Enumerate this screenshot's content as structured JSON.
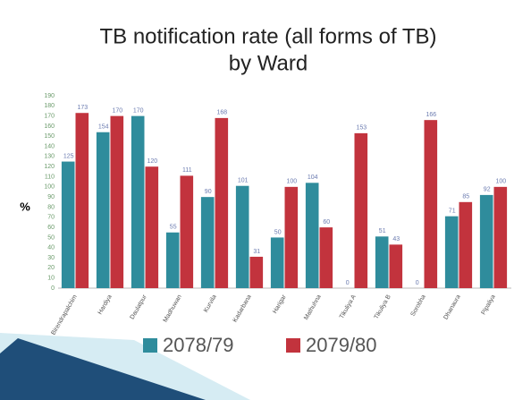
{
  "chart_data": {
    "type": "bar",
    "title_lines": [
      "TB notification rate (all forms of TB)",
      "by Ward"
    ],
    "y_label": "%",
    "categories": [
      "Birendrapalchim",
      "Hardiya",
      "Daulatpur",
      "Madhuwan",
      "Kurvila",
      "Kadarbana",
      "Harigar",
      "Mathuhna",
      "Tikuliya A",
      "Tikuliya B",
      "Sorobha",
      "Dhanaura",
      "Pipaliya"
    ],
    "series": [
      {
        "name": "2078/79",
        "color": "#2f8c9c",
        "values": [
          125,
          154,
          170,
          55,
          90,
          101,
          50,
          104,
          0,
          51,
          0,
          71,
          92
        ]
      },
      {
        "name": "2079/80",
        "color": "#c2333d",
        "values": [
          173,
          170,
          120,
          111,
          168,
          31,
          100,
          60,
          153,
          43,
          166,
          85,
          100
        ]
      }
    ],
    "ylim": [
      0,
      190
    ],
    "yticks": [
      0,
      10,
      20,
      30,
      40,
      50,
      60,
      70,
      80,
      90,
      100,
      110,
      120,
      130,
      140,
      150,
      160,
      170,
      180,
      190
    ],
    "grid": false
  }
}
